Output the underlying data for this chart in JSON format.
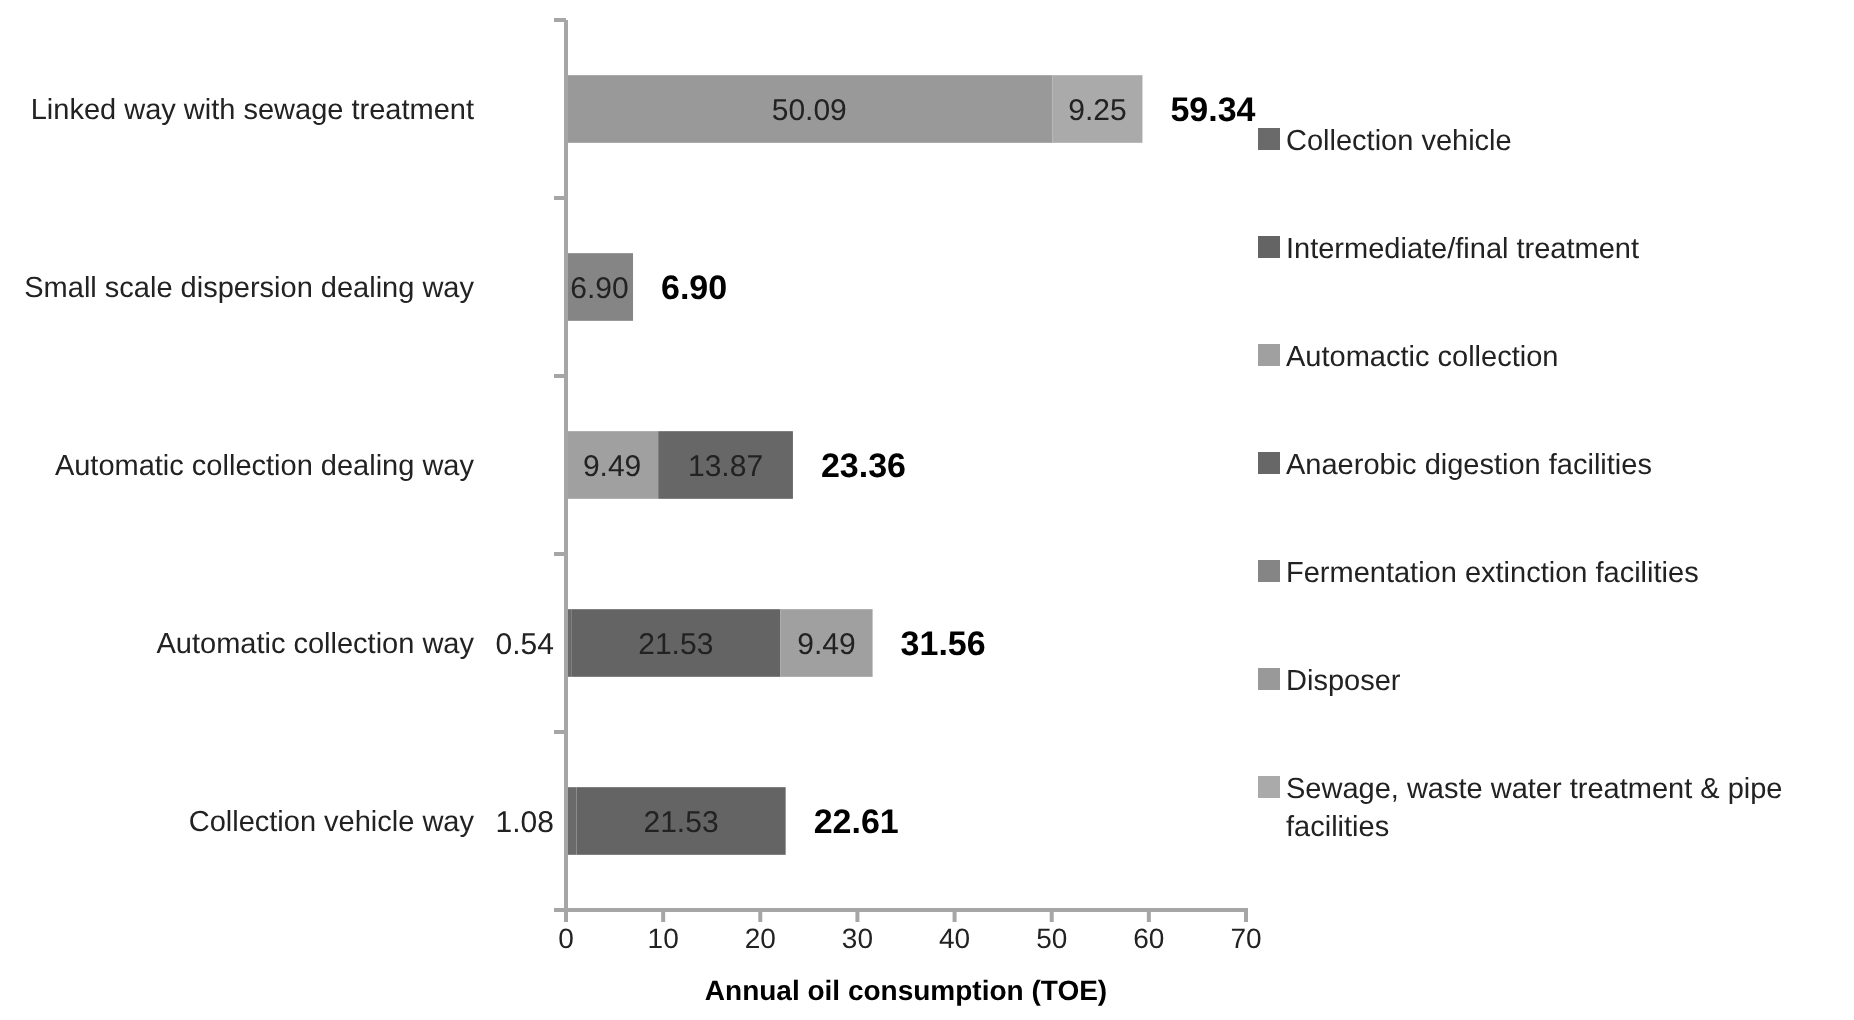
{
  "chart_data": {
    "type": "bar",
    "orientation": "horizontal",
    "stacked": true,
    "xlabel": "Annual oil consumption  (TOE)",
    "categories": [
      "Linked way with sewage treatment",
      "Small scale dispersion dealing way",
      "Automatic collection dealing way",
      "Automatic collection way",
      "Collection vehicle way"
    ],
    "series": [
      {
        "name": "Collection vehicle",
        "color": "#6a6a6a",
        "values": [
          null,
          null,
          null,
          0.54,
          1.08
        ],
        "value_labels": [
          null,
          null,
          null,
          "0.54",
          "1.08"
        ]
      },
      {
        "name": "Intermediate/final treatment",
        "color": "#646464",
        "values": [
          null,
          null,
          null,
          21.53,
          21.53
        ],
        "value_labels": [
          null,
          null,
          null,
          "21.53",
          "21.53"
        ]
      },
      {
        "name": "Automactic collection",
        "color": "#a0a0a0",
        "values": [
          null,
          null,
          9.49,
          9.49,
          null
        ],
        "value_labels": [
          null,
          null,
          "9.49",
          "9.49",
          null
        ]
      },
      {
        "name": "Anaerobic digestion facilities",
        "color": "#676767",
        "values": [
          null,
          null,
          13.87,
          null,
          null
        ],
        "value_labels": [
          null,
          null,
          "13.87",
          null,
          null
        ]
      },
      {
        "name": "Fermentation extinction facilities",
        "color": "#858585",
        "values": [
          null,
          6.9,
          null,
          null,
          null
        ],
        "value_labels": [
          null,
          "6.90",
          null,
          null,
          null
        ]
      },
      {
        "name": "Disposer",
        "color": "#999999",
        "values": [
          50.09,
          null,
          null,
          null,
          null
        ],
        "value_labels": [
          "50.09",
          null,
          null,
          null,
          null
        ]
      },
      {
        "name": "Sewage, waste water treatment & pipe facilities",
        "color": "#aaaaaa",
        "values": [
          9.25,
          null,
          null,
          null,
          null
        ],
        "value_labels": [
          "9.25",
          null,
          null,
          null,
          null
        ]
      }
    ],
    "totals": [
      "59.34",
      "6.90",
      "23.36",
      "31.56",
      "22.61"
    ],
    "xlim": [
      0,
      70
    ],
    "xticks": [
      0,
      10,
      20,
      30,
      40,
      50,
      60,
      70
    ],
    "grid": false,
    "legend": "right"
  }
}
